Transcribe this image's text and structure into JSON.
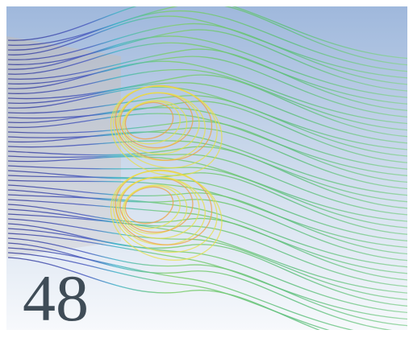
{
  "caption": {
    "number": "48"
  }
}
